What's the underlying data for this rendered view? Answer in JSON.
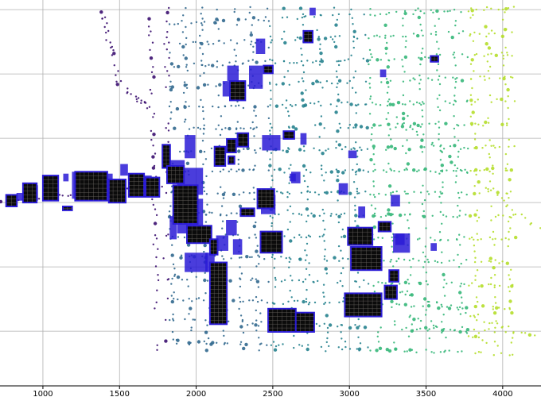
{
  "chart_data": {
    "type": "scatter",
    "title": "",
    "xlabel": "",
    "ylabel": "",
    "xlim": [
      720,
      4250
    ],
    "x_ticks": [
      1000,
      1500,
      2000,
      2500,
      3000,
      3500,
      4000
    ],
    "y_grid_count": 6,
    "grid": true,
    "colormap": [
      "#3b0f70",
      "#31688e",
      "#26828e",
      "#35b779",
      "#b5de2b"
    ],
    "marker_outline_color": "#2a1bd6",
    "cluster_fill_color": "#0b0b0b",
    "clusters": [
      {
        "x": 850,
        "y": 0.51,
        "w": 45,
        "h": 0.02
      },
      {
        "x": 940,
        "y": 0.5,
        "w": 55,
        "h": 0.04
      },
      {
        "x": 1040,
        "y": 0.49,
        "w": 70,
        "h": 0.06
      },
      {
        "x": 1150,
        "y": 0.46,
        "w": 35,
        "h": 0.02
      },
      {
        "x": 1250,
        "y": 0.48,
        "w": 120,
        "h": 0.07
      },
      {
        "x": 1400,
        "y": 0.48,
        "w": 110,
        "h": 0.06
      },
      {
        "x": 1530,
        "y": 0.44,
        "w": 50,
        "h": 0.03
      },
      {
        "x": 1650,
        "y": 0.48,
        "w": 120,
        "h": 0.05
      },
      {
        "x": 1850,
        "y": 0.59,
        "w": 45,
        "h": 0.06
      },
      {
        "x": 1880,
        "y": 0.55,
        "w": 55,
        "h": 0.04
      },
      {
        "x": 1870,
        "y": 0.43,
        "w": 110,
        "h": 0.03
      },
      {
        "x": 1960,
        "y": 0.38,
        "w": 70,
        "h": 0.06
      },
      {
        "x": 1960,
        "y": 0.47,
        "w": 170,
        "h": 0.07
      },
      {
        "x": 1960,
        "y": 0.56,
        "w": 170,
        "h": 0.09
      },
      {
        "x": 2000,
        "y": 0.68,
        "w": 150,
        "h": 0.05
      },
      {
        "x": 2090,
        "y": 0.68,
        "w": 60,
        "h": 0.05
      },
      {
        "x": 2170,
        "y": 0.63,
        "w": 80,
        "h": 0.04
      },
      {
        "x": 2230,
        "y": 0.59,
        "w": 70,
        "h": 0.04
      },
      {
        "x": 2270,
        "y": 0.64,
        "w": 60,
        "h": 0.04
      },
      {
        "x": 2130,
        "y": 0.79,
        "w": 90,
        "h": 0.05
      },
      {
        "x": 2210,
        "y": 0.23,
        "w": 75,
        "h": 0.04
      },
      {
        "x": 2240,
        "y": 0.19,
        "w": 75,
        "h": 0.04
      },
      {
        "x": 2470,
        "y": 0.53,
        "w": 95,
        "h": 0.05
      },
      {
        "x": 2630,
        "y": 0.46,
        "w": 40,
        "h": 0.02
      },
      {
        "x": 2490,
        "y": 0.37,
        "w": 120,
        "h": 0.04
      },
      {
        "x": 2530,
        "y": 0.84,
        "w": 45,
        "h": 0.02
      },
      {
        "x": 2390,
        "y": 0.2,
        "w": 90,
        "h": 0.06
      },
      {
        "x": 2420,
        "y": 0.12,
        "w": 60,
        "h": 0.04
      },
      {
        "x": 2760,
        "y": 0.03,
        "w": 40,
        "h": 0.02
      },
      {
        "x": 2650,
        "y": 0.46,
        "w": 60,
        "h": 0.03
      },
      {
        "x": 2700,
        "y": 0.36,
        "w": 40,
        "h": 0.03
      },
      {
        "x": 2960,
        "y": 0.49,
        "w": 60,
        "h": 0.03
      },
      {
        "x": 3020,
        "y": 0.4,
        "w": 55,
        "h": 0.02
      },
      {
        "x": 3080,
        "y": 0.55,
        "w": 45,
        "h": 0.03
      },
      {
        "x": 3220,
        "y": 0.19,
        "w": 40,
        "h": 0.02
      },
      {
        "x": 3300,
        "y": 0.52,
        "w": 60,
        "h": 0.03
      },
      {
        "x": 3330,
        "y": 0.62,
        "w": 60,
        "h": 0.03
      },
      {
        "x": 3340,
        "y": 0.63,
        "w": 110,
        "h": 0.05
      },
      {
        "x": 3550,
        "y": 0.64,
        "w": 40,
        "h": 0.02
      }
    ],
    "rectangles": [
      {
        "x0": 760,
        "x1": 830,
        "y0": 0.505,
        "y1": 0.535
      },
      {
        "x0": 870,
        "x1": 960,
        "y0": 0.475,
        "y1": 0.525
      },
      {
        "x0": 1000,
        "x1": 1100,
        "y0": 0.455,
        "y1": 0.52
      },
      {
        "x0": 1130,
        "x1": 1190,
        "y0": 0.535,
        "y1": 0.545
      },
      {
        "x0": 1210,
        "x1": 1420,
        "y0": 0.445,
        "y1": 0.52
      },
      {
        "x0": 1430,
        "x1": 1540,
        "y0": 0.465,
        "y1": 0.525
      },
      {
        "x0": 1560,
        "x1": 1660,
        "y0": 0.45,
        "y1": 0.51
      },
      {
        "x0": 1670,
        "x1": 1760,
        "y0": 0.46,
        "y1": 0.51
      },
      {
        "x0": 1780,
        "x1": 1830,
        "y0": 0.375,
        "y1": 0.435
      },
      {
        "x0": 1810,
        "x1": 1920,
        "y0": 0.43,
        "y1": 0.475
      },
      {
        "x0": 1850,
        "x1": 2010,
        "y0": 0.48,
        "y1": 0.58
      },
      {
        "x0": 1940,
        "x1": 2100,
        "y0": 0.585,
        "y1": 0.63
      },
      {
        "x0": 2090,
        "x1": 2200,
        "y0": 0.68,
        "y1": 0.84
      },
      {
        "x0": 2090,
        "x1": 2140,
        "y0": 0.62,
        "y1": 0.66
      },
      {
        "x0": 2120,
        "x1": 2190,
        "y0": 0.38,
        "y1": 0.43
      },
      {
        "x0": 2200,
        "x1": 2260,
        "y0": 0.36,
        "y1": 0.395
      },
      {
        "x0": 2270,
        "x1": 2340,
        "y0": 0.345,
        "y1": 0.38
      },
      {
        "x0": 2210,
        "x1": 2250,
        "y0": 0.405,
        "y1": 0.425
      },
      {
        "x0": 2220,
        "x1": 2320,
        "y0": 0.21,
        "y1": 0.26
      },
      {
        "x0": 2400,
        "x1": 2510,
        "y0": 0.49,
        "y1": 0.54
      },
      {
        "x0": 2290,
        "x1": 2380,
        "y0": 0.54,
        "y1": 0.56
      },
      {
        "x0": 2420,
        "x1": 2560,
        "y0": 0.6,
        "y1": 0.655
      },
      {
        "x0": 2440,
        "x1": 2500,
        "y0": 0.17,
        "y1": 0.19
      },
      {
        "x0": 2470,
        "x1": 2650,
        "y0": 0.8,
        "y1": 0.86
      },
      {
        "x0": 2650,
        "x1": 2770,
        "y0": 0.81,
        "y1": 0.86
      },
      {
        "x0": 2570,
        "x1": 2640,
        "y0": 0.34,
        "y1": 0.36
      },
      {
        "x0": 2700,
        "x1": 2760,
        "y0": 0.08,
        "y1": 0.11
      },
      {
        "x0": 2990,
        "x1": 3150,
        "y0": 0.59,
        "y1": 0.635
      },
      {
        "x0": 2970,
        "x1": 3210,
        "y0": 0.76,
        "y1": 0.82
      },
      {
        "x0": 3010,
        "x1": 3210,
        "y0": 0.64,
        "y1": 0.7
      },
      {
        "x0": 3190,
        "x1": 3270,
        "y0": 0.575,
        "y1": 0.6
      },
      {
        "x0": 3230,
        "x1": 3310,
        "y0": 0.74,
        "y1": 0.775
      },
      {
        "x0": 3260,
        "x1": 3320,
        "y0": 0.7,
        "y1": 0.73
      },
      {
        "x0": 3530,
        "x1": 3580,
        "y0": 0.145,
        "y1": 0.16
      }
    ]
  }
}
